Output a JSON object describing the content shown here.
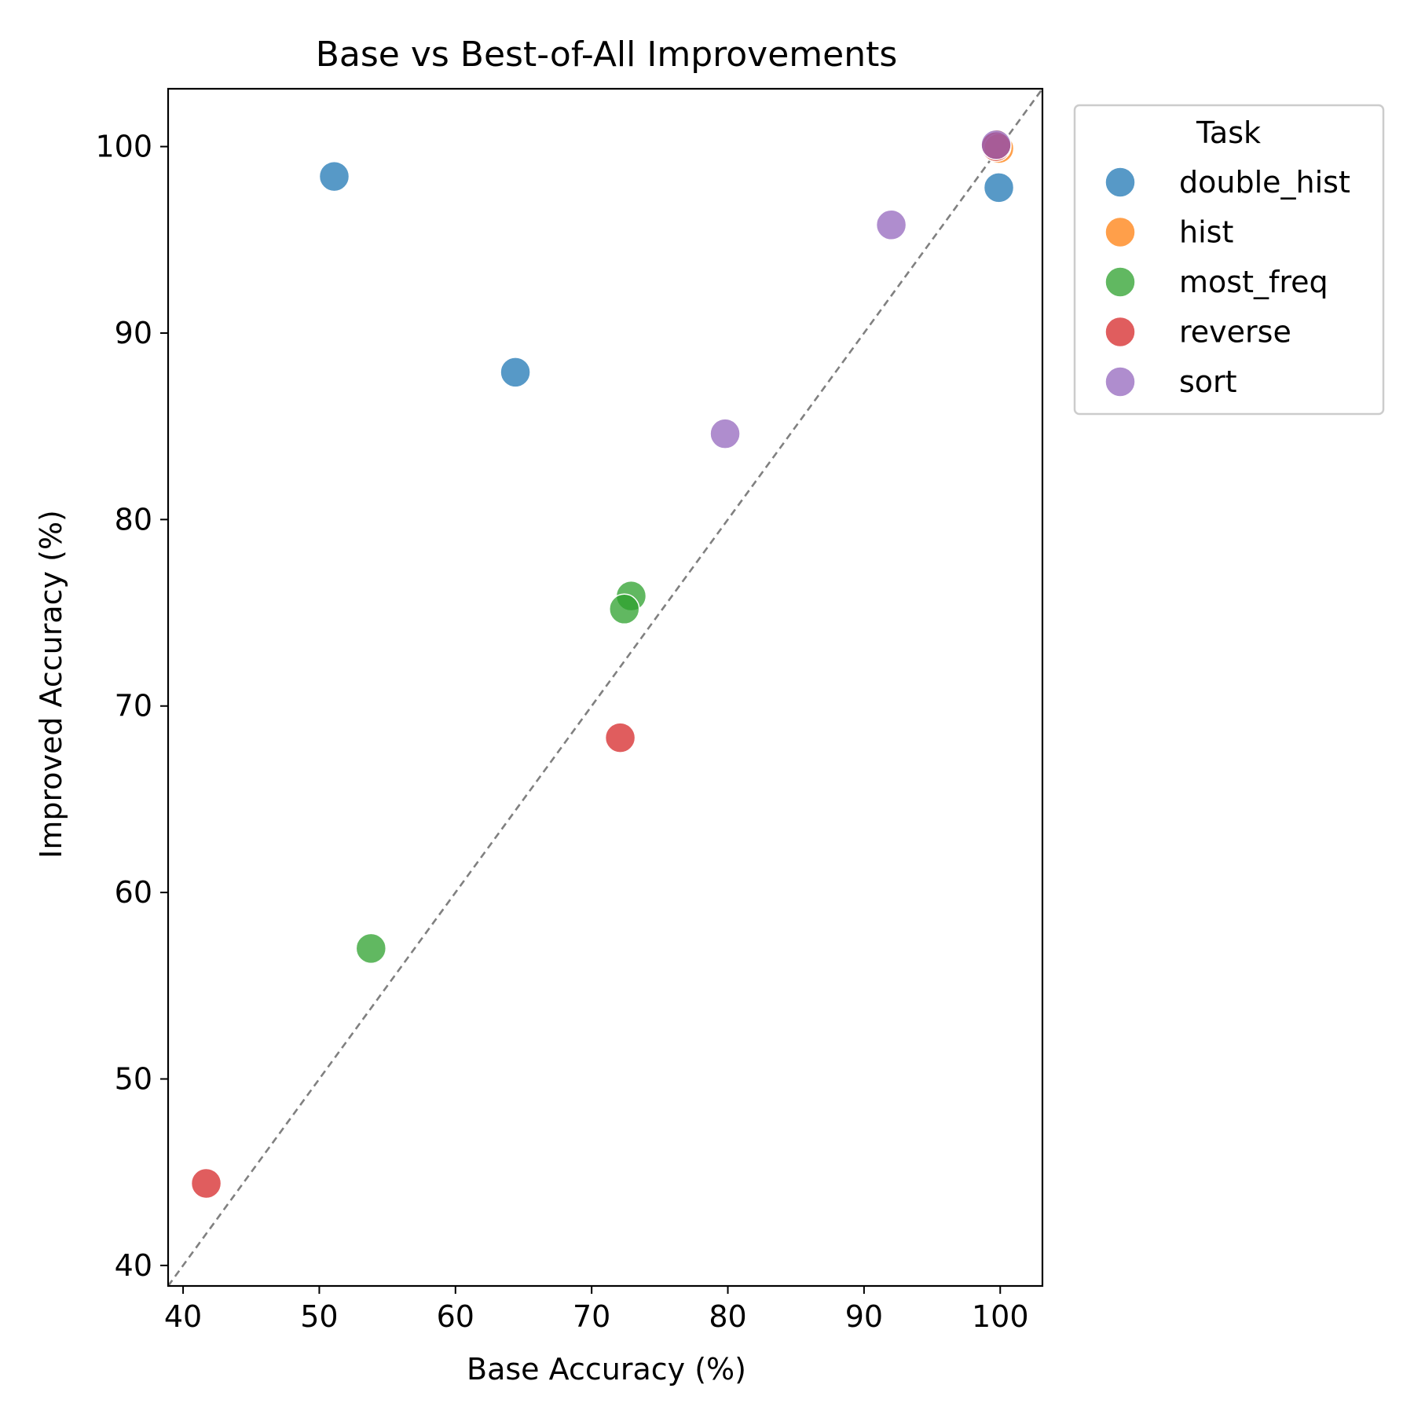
{
  "chart_data": {
    "type": "scatter",
    "title": "Base vs Best-of-All Improvements",
    "xlabel": "Base Accuracy (%)",
    "ylabel": "Improved Accuracy (%)",
    "xlim": [
      38.9,
      103.1
    ],
    "ylim": [
      38.9,
      103.1
    ],
    "xticks": [
      40,
      50,
      60,
      70,
      80,
      90,
      100
    ],
    "yticks": [
      40,
      50,
      60,
      70,
      80,
      90,
      100
    ],
    "grid": false,
    "reference_line": "y = x",
    "legend": {
      "title": "Task",
      "placement": "outside-top-right"
    },
    "series": [
      {
        "name": "double_hist",
        "color": "#1f77b4",
        "points": [
          {
            "x": 51.1,
            "y": 98.4
          },
          {
            "x": 64.4,
            "y": 87.9
          },
          {
            "x": 99.9,
            "y": 97.8
          },
          {
            "x": 99.7,
            "y": 100.0
          }
        ]
      },
      {
        "name": "hist",
        "color": "#ff7f0e",
        "points": [
          {
            "x": 99.8,
            "y": 100.1
          },
          {
            "x": 99.9,
            "y": 99.9
          }
        ]
      },
      {
        "name": "most_freq",
        "color": "#2ca02c",
        "points": [
          {
            "x": 53.8,
            "y": 57.0
          },
          {
            "x": 72.9,
            "y": 75.9
          },
          {
            "x": 72.4,
            "y": 75.2
          }
        ]
      },
      {
        "name": "reverse",
        "color": "#d62728",
        "points": [
          {
            "x": 41.7,
            "y": 44.4
          },
          {
            "x": 72.1,
            "y": 68.3
          },
          {
            "x": 99.7,
            "y": 100.0
          }
        ]
      },
      {
        "name": "sort",
        "color": "#9467bd",
        "points": [
          {
            "x": 92.0,
            "y": 95.8
          },
          {
            "x": 79.8,
            "y": 84.6
          },
          {
            "x": 99.7,
            "y": 100.1
          }
        ]
      }
    ]
  }
}
